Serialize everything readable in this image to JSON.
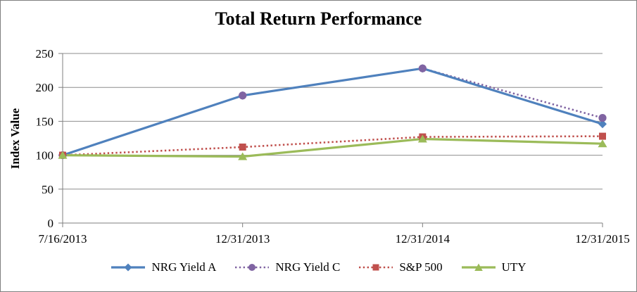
{
  "chart_data": {
    "type": "line",
    "title": "Total Return Performance",
    "ylabel": "Index Value",
    "xlabel": "",
    "categories": [
      "7/16/2013",
      "12/31/2013",
      "12/31/2014",
      "12/31/2015"
    ],
    "series": [
      {
        "name": "NRG Yield A",
        "values": [
          100,
          188,
          228,
          146
        ],
        "color": "#4F81BD",
        "marker": "diamond",
        "line": "solid"
      },
      {
        "name": "NRG Yield C",
        "values": [
          100,
          188,
          228,
          155
        ],
        "color": "#8064A2",
        "marker": "circle",
        "line": "dotted"
      },
      {
        "name": "S&P 500",
        "values": [
          100,
          112,
          127,
          128
        ],
        "color": "#C0504D",
        "marker": "square",
        "line": "dotted"
      },
      {
        "name": "UTY",
        "values": [
          100,
          98,
          124,
          117
        ],
        "color": "#9BBB59",
        "marker": "triangle",
        "line": "solid"
      }
    ],
    "y_ticks": [
      0,
      50,
      100,
      150,
      200,
      250
    ],
    "ylim": [
      0,
      250
    ],
    "grid": "horizontal-only",
    "legend_position": "bottom",
    "colors": {
      "grid_color": "#8e8e8e",
      "axis_color": "#7f7f7f",
      "text_color": "#000000",
      "background": "#ffffff",
      "border_color": "#7f7f7f"
    }
  }
}
